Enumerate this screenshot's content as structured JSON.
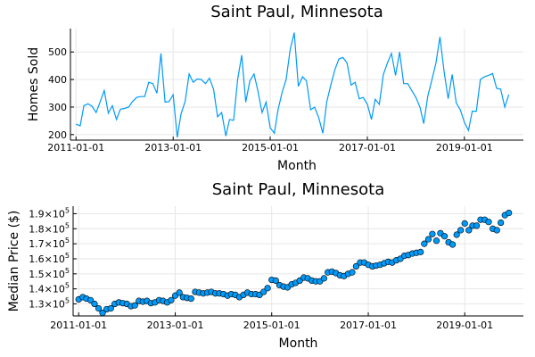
{
  "chart_data": [
    {
      "type": "line",
      "title": "Saint Paul, Minnesota",
      "xlabel": "Month",
      "ylabel": "Homes Sold",
      "x_tick_labels": [
        "2011-01-01",
        "2013-01-01",
        "2015-01-01",
        "2017-01-01",
        "2019-01-01"
      ],
      "y_tick_labels": [
        "200",
        "300",
        "400",
        "500"
      ],
      "xlim": [
        "2010-11-20",
        "2020-03-20"
      ],
      "ylim": [
        180,
        585
      ],
      "grid": true,
      "color": "#009AF9",
      "series": [
        {
          "x": [
            "2011-01-01",
            "2011-02-01",
            "2011-03-01",
            "2011-04-01",
            "2011-05-01",
            "2011-06-01",
            "2011-07-01",
            "2011-08-01",
            "2011-09-01",
            "2011-10-01",
            "2011-11-01",
            "2011-12-01",
            "2012-01-01",
            "2012-02-01",
            "2012-03-01",
            "2012-04-01",
            "2012-05-01",
            "2012-06-01",
            "2012-07-01",
            "2012-08-01",
            "2012-09-01",
            "2012-10-01",
            "2012-11-01",
            "2012-12-01",
            "2013-01-01",
            "2013-02-01",
            "2013-03-01",
            "2013-04-01",
            "2013-05-01",
            "2013-06-01",
            "2013-07-01",
            "2013-08-01",
            "2013-09-01",
            "2013-10-01",
            "2013-11-01",
            "2013-12-01",
            "2014-01-01",
            "2014-02-01",
            "2014-03-01",
            "2014-04-01",
            "2014-05-01",
            "2014-06-01",
            "2014-07-01",
            "2014-08-01",
            "2014-09-01",
            "2014-10-01",
            "2014-11-01",
            "2014-12-01",
            "2015-01-01",
            "2015-02-01",
            "2015-03-01",
            "2015-04-01",
            "2015-05-01",
            "2015-06-01",
            "2015-07-01",
            "2015-08-01",
            "2015-09-01",
            "2015-10-01",
            "2015-11-01",
            "2015-12-01",
            "2016-01-01",
            "2016-02-01",
            "2016-03-01",
            "2016-04-01",
            "2016-05-01",
            "2016-06-01",
            "2016-07-01",
            "2016-08-01",
            "2016-09-01",
            "2016-10-01",
            "2016-11-01",
            "2016-12-01",
            "2017-01-01",
            "2017-02-01",
            "2017-03-01",
            "2017-04-01",
            "2017-05-01",
            "2017-06-01",
            "2017-07-01",
            "2017-08-01",
            "2017-09-01",
            "2017-10-01",
            "2017-11-01",
            "2017-12-01",
            "2018-01-01",
            "2018-02-01",
            "2018-03-01",
            "2018-04-01",
            "2018-05-01",
            "2018-06-01",
            "2018-07-01",
            "2018-08-01",
            "2018-09-01",
            "2018-10-01",
            "2018-11-01",
            "2018-12-01",
            "2019-01-01",
            "2019-02-01",
            "2019-03-01",
            "2019-04-01",
            "2019-05-01",
            "2019-06-01",
            "2019-07-01",
            "2019-08-01",
            "2019-09-01",
            "2019-10-01",
            "2019-11-01",
            "2019-12-01"
          ],
          "y": [
            238,
            232,
            305,
            312,
            303,
            280,
            318,
            360,
            278,
            305,
            255,
            292,
            295,
            300,
            320,
            335,
            338,
            338,
            390,
            385,
            350,
            495,
            318,
            320,
            345,
            190,
            275,
            320,
            420,
            390,
            402,
            400,
            385,
            405,
            365,
            265,
            280,
            195,
            255,
            252,
            400,
            488,
            318,
            395,
            420,
            358,
            280,
            318,
            225,
            205,
            290,
            355,
            400,
            510,
            570,
            375,
            410,
            395,
            290,
            300,
            262,
            205,
            318,
            380,
            435,
            475,
            480,
            460,
            380,
            390,
            330,
            335,
            310,
            255,
            328,
            310,
            418,
            460,
            495,
            415,
            500,
            385,
            385,
            360,
            335,
            300,
            240,
            340,
            398,
            460,
            555,
            430,
            330,
            418,
            315,
            290,
            245,
            215,
            285,
            285,
            400,
            410,
            415,
            422,
            368,
            365,
            300,
            345
          ]
        }
      ]
    },
    {
      "type": "scatter",
      "title": "Saint Paul, Minnesota",
      "xlabel": "Month",
      "ylabel": "Median Price ($)",
      "x_tick_labels": [
        "2011-01-01",
        "2013-01-01",
        "2015-01-01",
        "2017-01-01",
        "2019-01-01"
      ],
      "y_tick_labels": [
        {
          "mantissa": "1.3",
          "exp": "5"
        },
        {
          "mantissa": "1.4",
          "exp": "5"
        },
        {
          "mantissa": "1.5",
          "exp": "5"
        },
        {
          "mantissa": "1.6",
          "exp": "5"
        },
        {
          "mantissa": "1.7",
          "exp": "5"
        },
        {
          "mantissa": "1.8",
          "exp": "5"
        },
        {
          "mantissa": "1.9",
          "exp": "5"
        }
      ],
      "ylim": [
        122000,
        195000
      ],
      "grid": true,
      "color": "#009AF9",
      "series": [
        {
          "y": [
            133000,
            134500,
            133500,
            132500,
            130000,
            127000,
            124000,
            126500,
            127000,
            130000,
            131000,
            130500,
            130000,
            128500,
            129000,
            132000,
            131500,
            132000,
            130500,
            131000,
            132500,
            132000,
            131000,
            132500,
            135500,
            137500,
            134500,
            134000,
            133500,
            138000,
            137500,
            137000,
            137500,
            138000,
            137000,
            137000,
            136500,
            135500,
            136500,
            136000,
            134500,
            136000,
            137500,
            136500,
            136500,
            136000,
            138000,
            140500,
            146000,
            145500,
            142500,
            141500,
            141000,
            143000,
            144000,
            145500,
            147500,
            147000,
            145500,
            145000,
            145000,
            147000,
            151000,
            151500,
            150500,
            149000,
            148500,
            150000,
            151000,
            155000,
            157500,
            157500,
            156000,
            155000,
            155500,
            156000,
            157000,
            158000,
            157500,
            159000,
            160000,
            162000,
            162500,
            163500,
            164000,
            164500,
            170000,
            173000,
            176500,
            172000,
            177000,
            175000,
            171000,
            169500,
            176000,
            179000,
            183500,
            179000,
            182000,
            182000,
            186000,
            186000,
            184500,
            180000,
            179000,
            184000,
            189000,
            190500
          ]
        }
      ]
    }
  ]
}
